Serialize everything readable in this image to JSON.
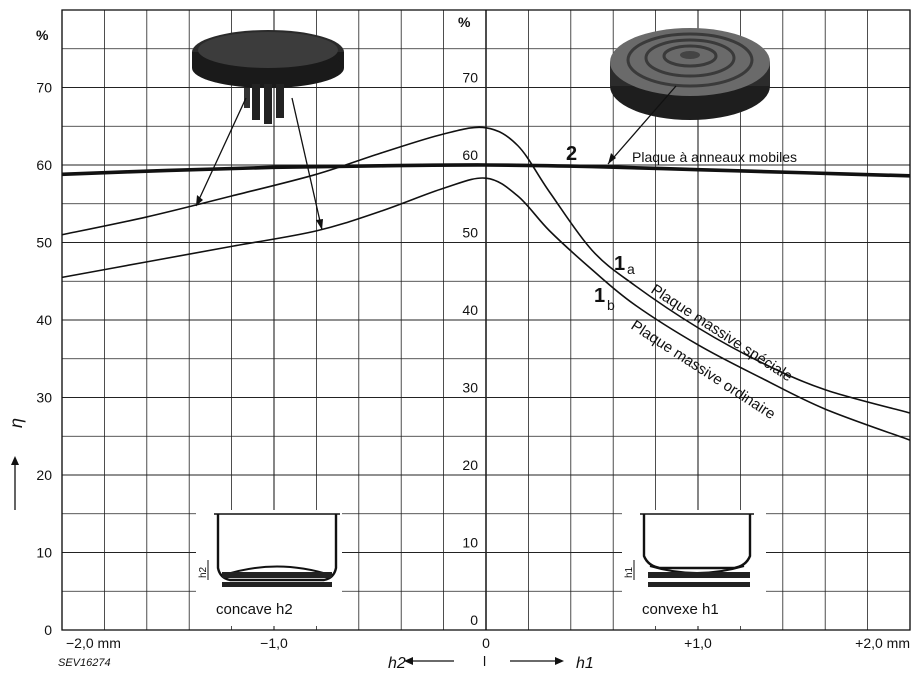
{
  "chart_data": {
    "type": "line",
    "title": "",
    "xlabel": "",
    "ylabel": "η",
    "y_unit": "%",
    "xlim": [
      -2.0,
      2.0
    ],
    "ylim": [
      0,
      80
    ],
    "grid": true,
    "left_y_ticks": [
      "0",
      "10",
      "20",
      "30",
      "40",
      "50",
      "60",
      "70"
    ],
    "center_y_ticks": [
      "0",
      "10",
      "20",
      "30",
      "40",
      "50",
      "60",
      "70"
    ],
    "x_ticks": [
      {
        "x": -2.0,
        "label": "−2,0 mm"
      },
      {
        "x": -1.0,
        "label": "−1,0"
      },
      {
        "x": 0.0,
        "label": "0"
      },
      {
        "x": 1.0,
        "label": "+1,0"
      },
      {
        "x": 2.0,
        "label": "+2,0 mm"
      }
    ],
    "x_direction_left": "h2",
    "x_direction_right": "h1",
    "x_center_mark": "l",
    "series": [
      {
        "id": "2",
        "name": "Plaque à anneaux mobiles",
        "number": "2",
        "x": [
          -2.0,
          -1.5,
          -1.0,
          -0.5,
          0.0,
          0.5,
          1.0,
          1.5,
          2.0
        ],
        "y": [
          58.8,
          59.3,
          59.7,
          59.9,
          60.0,
          59.8,
          59.4,
          59.0,
          58.6
        ]
      },
      {
        "id": "1a",
        "name": "Plaque massive spéciale",
        "number": "1",
        "sub": "a",
        "x": [
          -2.0,
          -1.6,
          -1.2,
          -0.8,
          -0.5,
          -0.2,
          0.0,
          0.15,
          0.3,
          0.5,
          0.7,
          1.0,
          1.3,
          1.6,
          2.0
        ],
        "y": [
          51.0,
          53.3,
          56.0,
          58.8,
          61.5,
          64.0,
          64.8,
          62.5,
          56.5,
          49.0,
          44.5,
          39.0,
          34.5,
          31.0,
          28.0
        ]
      },
      {
        "id": "1b",
        "name": "Plaque massive ordinaire",
        "number": "1",
        "sub": "b",
        "x": [
          -2.0,
          -1.6,
          -1.2,
          -0.8,
          -0.5,
          -0.2,
          0.0,
          0.15,
          0.3,
          0.5,
          0.7,
          1.0,
          1.3,
          1.6,
          2.0
        ],
        "y": [
          45.5,
          47.5,
          49.5,
          51.5,
          54.0,
          57.0,
          58.3,
          56.0,
          51.5,
          46.5,
          42.0,
          36.8,
          32.5,
          28.5,
          24.5
        ]
      }
    ]
  },
  "insets": {
    "left_caption": "concave h2",
    "right_caption": "convexe h1",
    "left_dim": "h2",
    "right_dim": "h1"
  },
  "figure_code": "SEV16274"
}
